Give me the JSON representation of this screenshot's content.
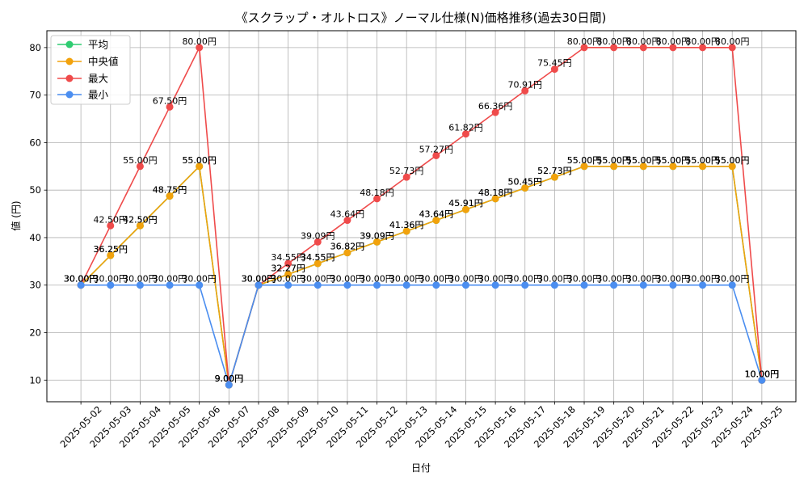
{
  "chart_data": {
    "type": "line",
    "title": "《スクラップ・オルトロス》ノーマル仕様(N)価格推移(過去30日間)",
    "xlabel": "日付",
    "ylabel": "値 (円)",
    "categories": [
      "2025-05-02",
      "2025-05-03",
      "2025-05-04",
      "2025-05-05",
      "2025-05-06",
      "2025-05-07",
      "2025-05-08",
      "2025-05-09",
      "2025-05-10",
      "2025-05-11",
      "2025-05-12",
      "2025-05-13",
      "2025-05-14",
      "2025-05-15",
      "2025-05-16",
      "2025-05-17",
      "2025-05-18",
      "2025-05-19",
      "2025-05-20",
      "2025-05-21",
      "2025-05-22",
      "2025-05-23",
      "2025-05-24",
      "2025-05-25"
    ],
    "ylim": [
      5.45,
      83.55
    ],
    "yticks": [
      10,
      20,
      30,
      40,
      50,
      60,
      70,
      80
    ],
    "grid": true,
    "legend_position": "top-left",
    "data_label_suffix": "円",
    "data_label_decimals": 2,
    "series": [
      {
        "name": "平均",
        "color": "#2ecc71",
        "values": [
          30,
          36.25,
          42.5,
          48.75,
          55,
          9,
          30,
          32.27,
          34.55,
          36.82,
          39.09,
          41.36,
          43.64,
          45.91,
          48.18,
          50.45,
          52.73,
          55,
          55,
          55,
          55,
          55,
          55,
          10
        ]
      },
      {
        "name": "中央値",
        "color": "#f2a20c",
        "values": [
          30,
          36.25,
          42.5,
          48.75,
          55,
          9,
          30,
          32.27,
          34.55,
          36.82,
          39.09,
          41.36,
          43.64,
          45.91,
          48.18,
          50.45,
          52.73,
          55,
          55,
          55,
          55,
          55,
          55,
          10
        ]
      },
      {
        "name": "最大",
        "color": "#ef4b4b",
        "values": [
          30,
          42.5,
          55,
          67.5,
          80,
          9,
          30,
          34.55,
          39.09,
          43.64,
          48.18,
          52.73,
          57.27,
          61.82,
          66.36,
          70.91,
          75.45,
          80,
          80,
          80,
          80,
          80,
          80,
          10
        ]
      },
      {
        "name": "最小",
        "color": "#4b8ef0",
        "values": [
          30,
          30,
          30,
          30,
          30,
          9,
          30,
          30,
          30,
          30,
          30,
          30,
          30,
          30,
          30,
          30,
          30,
          30,
          30,
          30,
          30,
          30,
          30,
          10
        ]
      }
    ]
  }
}
